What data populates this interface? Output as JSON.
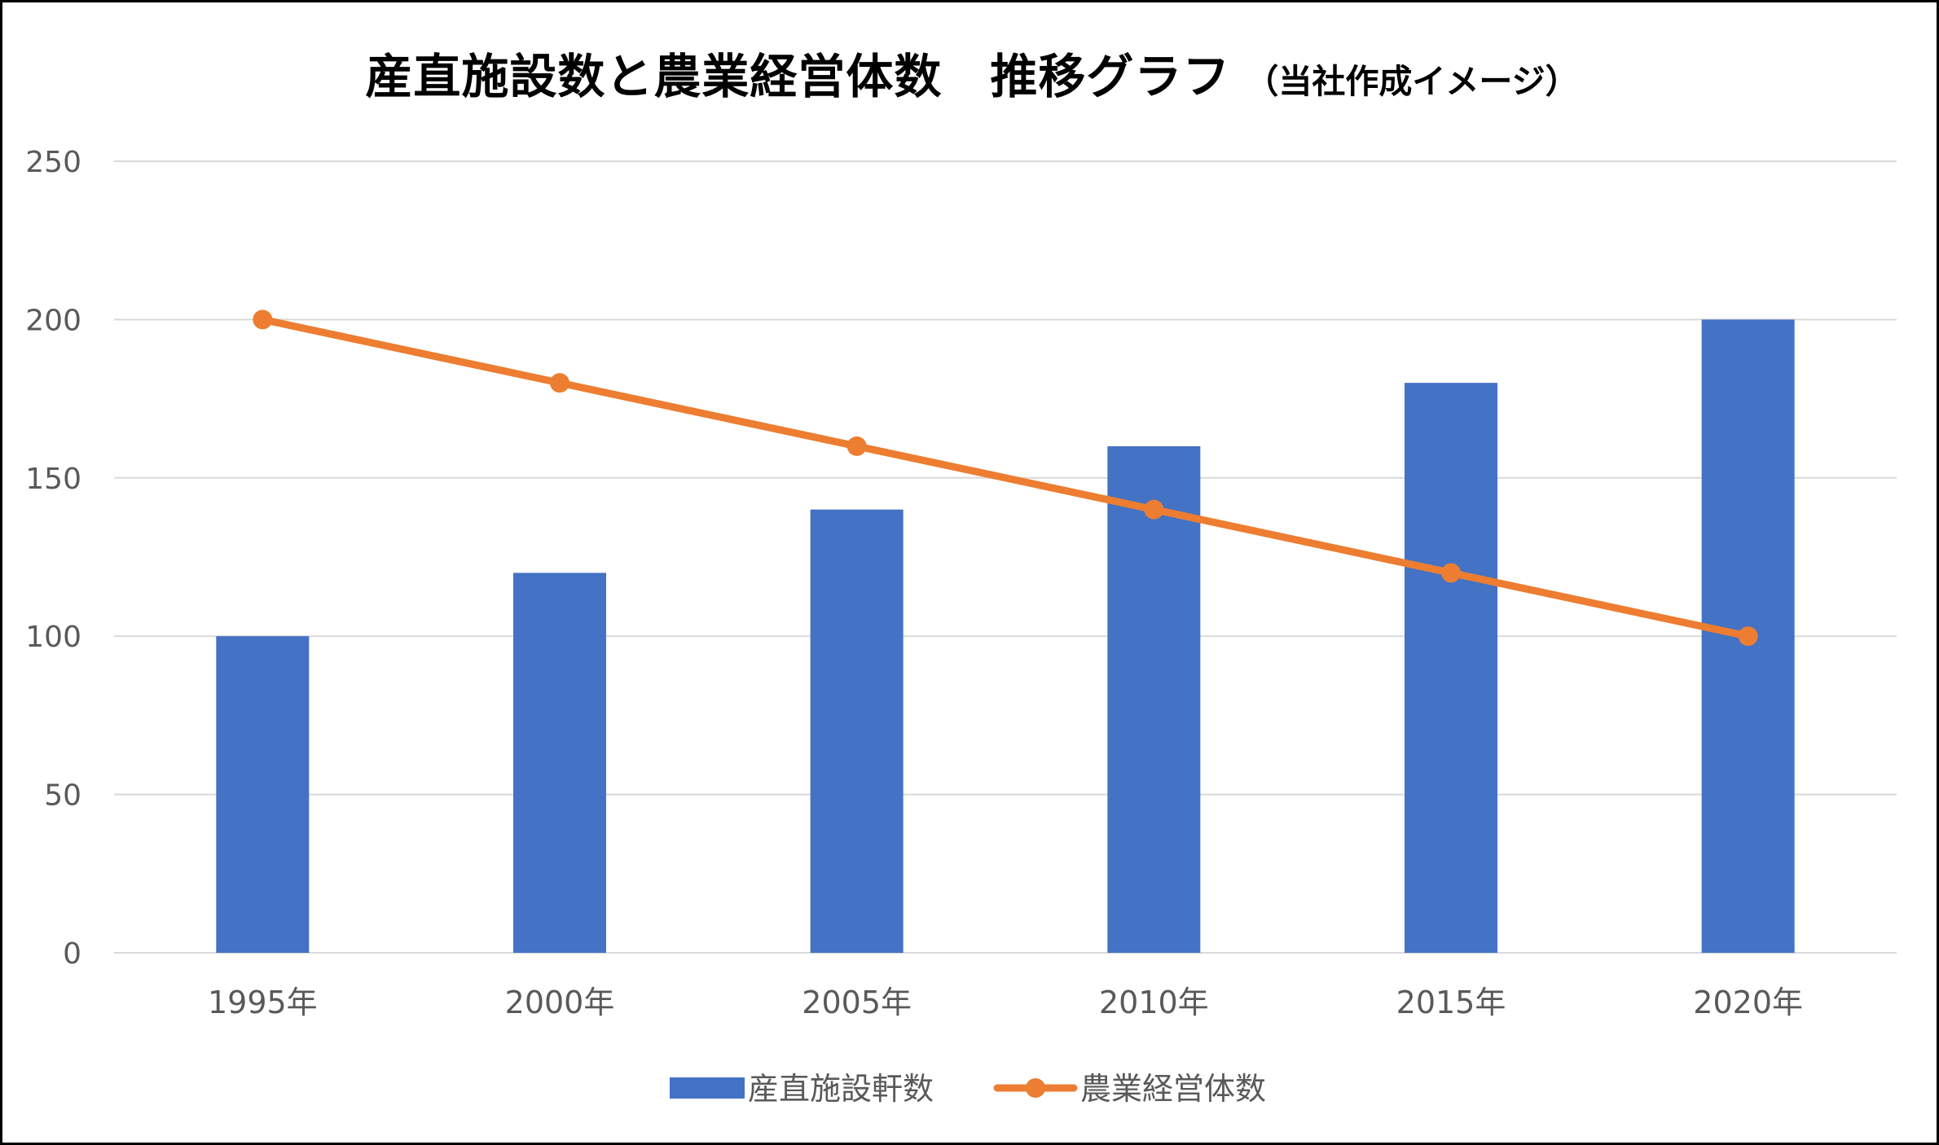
{
  "title": {
    "main": "産直施設数と農業経営体数　推移グラフ",
    "sub": "（当社作成イメージ）"
  },
  "chart_data": {
    "type": "bar",
    "title": "産直施設数と農業経営体数　推移グラフ（当社作成イメージ）",
    "categories": [
      "1995年",
      "2000年",
      "2005年",
      "2010年",
      "2015年",
      "2020年"
    ],
    "series": [
      {
        "name": "産直施設軒数",
        "type": "bar",
        "color": "#4472C4",
        "values": [
          100,
          120,
          140,
          160,
          180,
          200
        ]
      },
      {
        "name": "農業経営体数",
        "type": "line",
        "color": "#ED7D31",
        "values": [
          200,
          180,
          160,
          140,
          120,
          100
        ]
      }
    ],
    "yticks": [
      0,
      50,
      100,
      150,
      200,
      250
    ],
    "ylim": [
      0,
      250
    ],
    "xlabel": "",
    "ylabel": "",
    "grid": true,
    "legend": "bottom-center",
    "colors": {
      "gridline": "#D9D9D9",
      "tick_label": "#595959",
      "legend_text": "#595959"
    }
  }
}
